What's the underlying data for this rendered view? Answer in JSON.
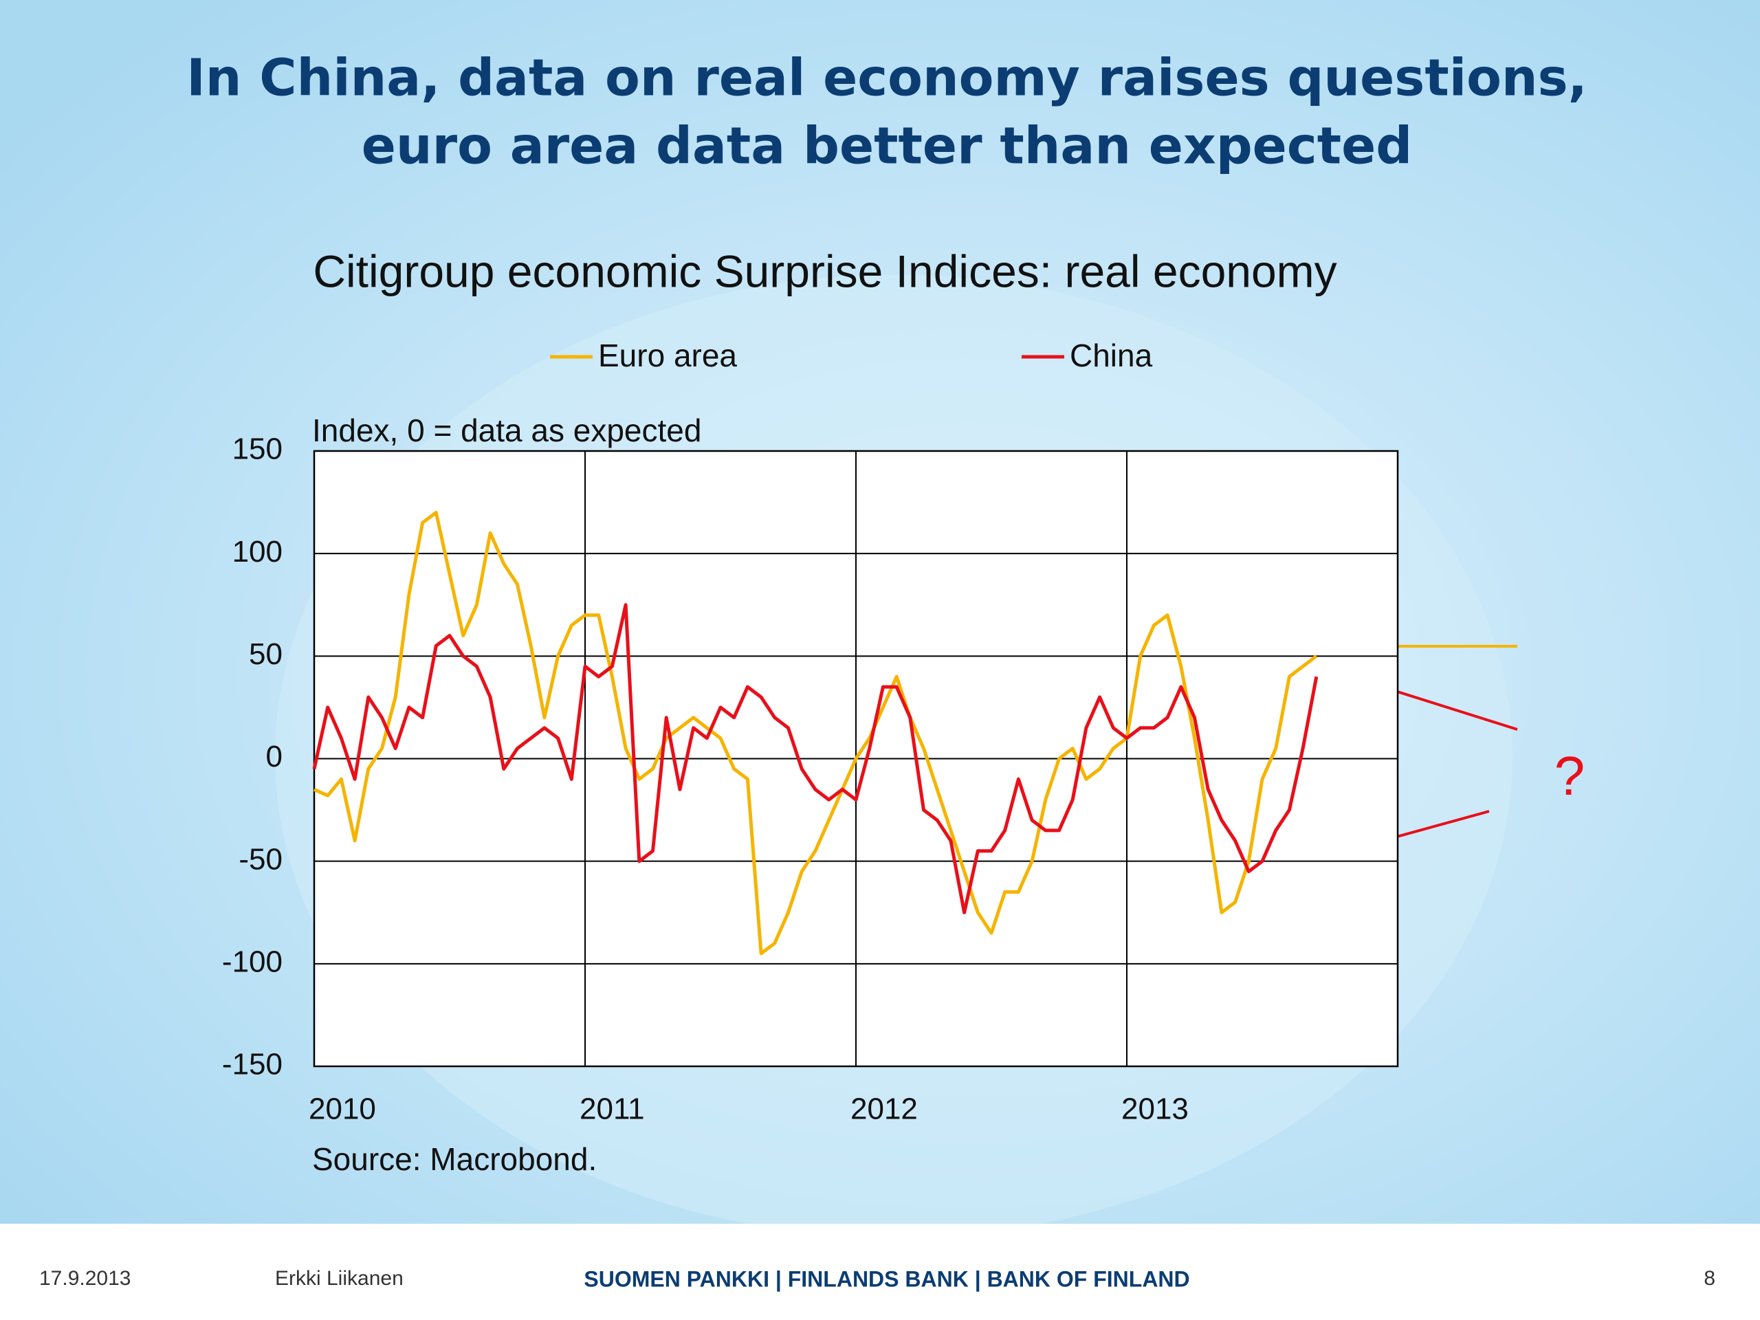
{
  "slide": {
    "title": [
      "In China, data on real economy raises questions,",
      "euro area data better than expected"
    ],
    "footer": {
      "date": "17.9.2013",
      "author": "Erkki Liikanen",
      "organization": "SUOMEN PANKKI | FINLANDS BANK | BANK OF FINLAND",
      "page": "8"
    }
  },
  "chart_data": {
    "type": "line",
    "title": "Citigroup economic Surprise Indices: real economy",
    "y_label": "Index, 0 = data as expected",
    "source": "Source: Macrobond.",
    "annotation": "?",
    "x": [
      2010,
      2010.05,
      2010.1,
      2010.15,
      2010.2,
      2010.25,
      2010.3,
      2010.35,
      2010.4,
      2010.45,
      2010.5,
      2010.55,
      2010.6,
      2010.65,
      2010.7,
      2010.75,
      2010.8,
      2010.85,
      2010.9,
      2010.95,
      2011,
      2011.05,
      2011.1,
      2011.15,
      2011.2,
      2011.25,
      2011.3,
      2011.35,
      2011.4,
      2011.45,
      2011.5,
      2011.55,
      2011.6,
      2011.65,
      2011.7,
      2011.75,
      2011.8,
      2011.85,
      2011.9,
      2011.95,
      2012,
      2012.05,
      2012.1,
      2012.15,
      2012.2,
      2012.25,
      2012.3,
      2012.35,
      2012.4,
      2012.45,
      2012.5,
      2012.55,
      2012.6,
      2012.65,
      2012.7,
      2012.75,
      2012.8,
      2012.85,
      2012.9,
      2012.95,
      2013,
      2013.05,
      2013.1,
      2013.15,
      2013.2,
      2013.25,
      2013.3,
      2013.35,
      2013.4,
      2013.45,
      2013.5,
      2013.55,
      2013.6,
      2013.65,
      2013.7
    ],
    "series": [
      {
        "name": "Euro area",
        "color": "#f5b400",
        "values": [
          -15,
          -18,
          -10,
          -40,
          -5,
          5,
          30,
          80,
          115,
          120,
          90,
          60,
          75,
          110,
          95,
          85,
          55,
          20,
          50,
          65,
          70,
          70,
          40,
          5,
          -10,
          -5,
          10,
          15,
          20,
          15,
          10,
          -5,
          -10,
          -95,
          -90,
          -75,
          -55,
          -45,
          -30,
          -15,
          0,
          10,
          25,
          40,
          20,
          5,
          -15,
          -35,
          -55,
          -75,
          -85,
          -65,
          -65,
          -50,
          -20,
          0,
          5,
          -10,
          -5,
          5,
          10,
          50,
          65,
          70,
          45,
          10,
          -30,
          -75,
          -70,
          -50,
          -10,
          5,
          40,
          45,
          50
        ]
      },
      {
        "name": "China",
        "color": "#e8101a",
        "values": [
          -5,
          25,
          10,
          -10,
          30,
          20,
          5,
          25,
          20,
          55,
          60,
          50,
          45,
          30,
          -5,
          5,
          10,
          15,
          10,
          -10,
          45,
          40,
          45,
          75,
          -50,
          -45,
          20,
          -15,
          15,
          10,
          25,
          20,
          35,
          30,
          20,
          15,
          -5,
          -15,
          -20,
          -15,
          -20,
          5,
          35,
          35,
          20,
          -25,
          -30,
          -40,
          -75,
          -45,
          -45,
          -35,
          -10,
          -30,
          -35,
          -35,
          -20,
          15,
          30,
          15,
          10,
          15,
          15,
          20,
          35,
          20,
          -15,
          -30,
          -40,
          -55,
          -50,
          -35,
          -25,
          5,
          40
        ]
      }
    ],
    "xlim": [
      2010,
      2014
    ],
    "xticks": [
      2010,
      2011,
      2012,
      2013
    ],
    "ylim": [
      -150,
      150
    ],
    "yticks": [
      -150,
      -100,
      -50,
      0,
      50,
      100,
      150
    ],
    "grid": true
  }
}
